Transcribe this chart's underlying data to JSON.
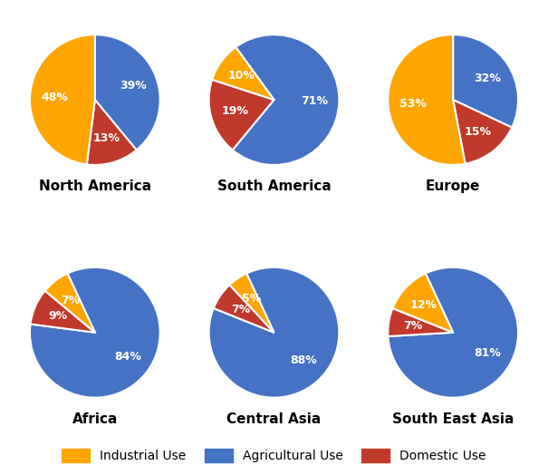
{
  "regions": [
    "North America",
    "South America",
    "Europe",
    "Africa",
    "Central Asia",
    "South East Asia"
  ],
  "agricultural": [
    39,
    71,
    32,
    84,
    88,
    81
  ],
  "domestic": [
    13,
    19,
    15,
    9,
    7,
    7
  ],
  "industrial": [
    48,
    10,
    53,
    7,
    5,
    12
  ],
  "colors": {
    "industrial": "#FFA500",
    "agricultural": "#4472C4",
    "domestic": "#C0392B"
  },
  "label_color": "white",
  "title_fontsize": 11,
  "label_fontsize": 9,
  "legend_fontsize": 10,
  "background_color": "#FFFFFF",
  "startangles": [
    90,
    126,
    90,
    115,
    115,
    115
  ]
}
